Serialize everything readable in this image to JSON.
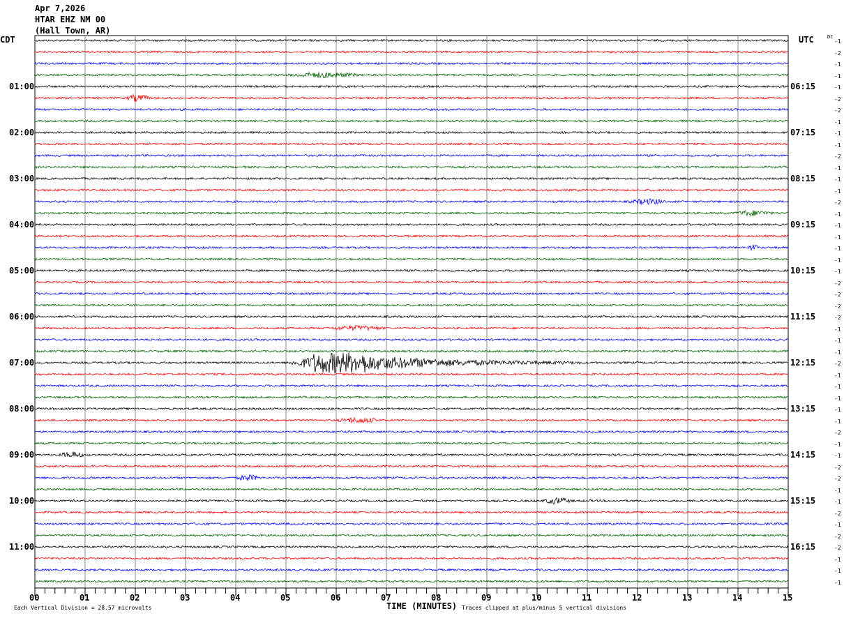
{
  "header": {
    "date": "Apr 7,2026",
    "station": "HTAR EHZ NM 00",
    "location": "(Hall Town, AR)"
  },
  "left_timezone": "CDT",
  "right_timezone": "UTC",
  "dc_label": "DC",
  "footer": {
    "scale_note": "Each Vertical Division =   28.57 microvolts",
    "clip_note": "Traces clipped at plus/minus 5 vertical divisions"
  },
  "chart_data": {
    "type": "line",
    "subtype": "helicorder",
    "xlabel": "TIME (MINUTES)",
    "xlim": [
      0,
      15
    ],
    "x_ticks": [
      "00",
      "01",
      "02",
      "03",
      "04",
      "05",
      "06",
      "07",
      "08",
      "09",
      "10",
      "11",
      "12",
      "13",
      "14",
      "15"
    ],
    "minutes_per_line": 15,
    "line_colors": [
      "#000000",
      "#ff0000",
      "#0000ff",
      "#006400"
    ],
    "left_hour_labels": [
      "01:00",
      "02:00",
      "03:00",
      "04:00",
      "05:00",
      "06:00",
      "07:00",
      "08:00",
      "09:00",
      "10:00",
      "11:00"
    ],
    "right_hour_labels": [
      "06:15",
      "07:15",
      "08:15",
      "09:15",
      "10:15",
      "11:15",
      "12:15",
      "13:15",
      "14:15",
      "15:15",
      "16:15"
    ],
    "dc_offsets": [
      -1,
      -2,
      -1,
      -1,
      -1,
      -2,
      -2,
      -1,
      -1,
      -1,
      -2,
      -1,
      -1,
      -1,
      -2,
      -1,
      -1,
      -1,
      -1,
      -1,
      -1,
      -2,
      -2,
      -2,
      -2,
      -1,
      -1,
      -1,
      -2,
      -1,
      -1,
      -1,
      -1,
      -1,
      -2,
      -1,
      -1,
      -2,
      -2,
      -1,
      -1,
      -2,
      -1,
      -2,
      -2,
      -1,
      -1,
      -1
    ],
    "events": [
      {
        "line": 28,
        "start_min": 5.0,
        "end_min": 10.9,
        "peak_min": 6.0,
        "amplitude": 4.5
      },
      {
        "line": 5,
        "start_min": 1.8,
        "end_min": 2.3,
        "amplitude": 1.2
      },
      {
        "line": 3,
        "start_min": 5.0,
        "end_min": 6.5,
        "amplitude": 0.9
      },
      {
        "line": 14,
        "start_min": 11.8,
        "end_min": 12.6,
        "amplitude": 0.9
      },
      {
        "line": 15,
        "start_min": 13.9,
        "end_min": 14.7,
        "amplitude": 0.9
      },
      {
        "line": 18,
        "start_min": 14.2,
        "end_min": 14.4,
        "amplitude": 1.2
      },
      {
        "line": 25,
        "start_min": 5.8,
        "end_min": 7.0,
        "amplitude": 0.8
      },
      {
        "line": 33,
        "start_min": 6.0,
        "end_min": 6.9,
        "amplitude": 0.9
      },
      {
        "line": 36,
        "start_min": 0.5,
        "end_min": 1.0,
        "amplitude": 1.0
      },
      {
        "line": 38,
        "start_min": 4.0,
        "end_min": 4.5,
        "amplitude": 1.0
      },
      {
        "line": 40,
        "start_min": 10.1,
        "end_min": 10.7,
        "amplitude": 1.1
      }
    ],
    "grid": true
  }
}
